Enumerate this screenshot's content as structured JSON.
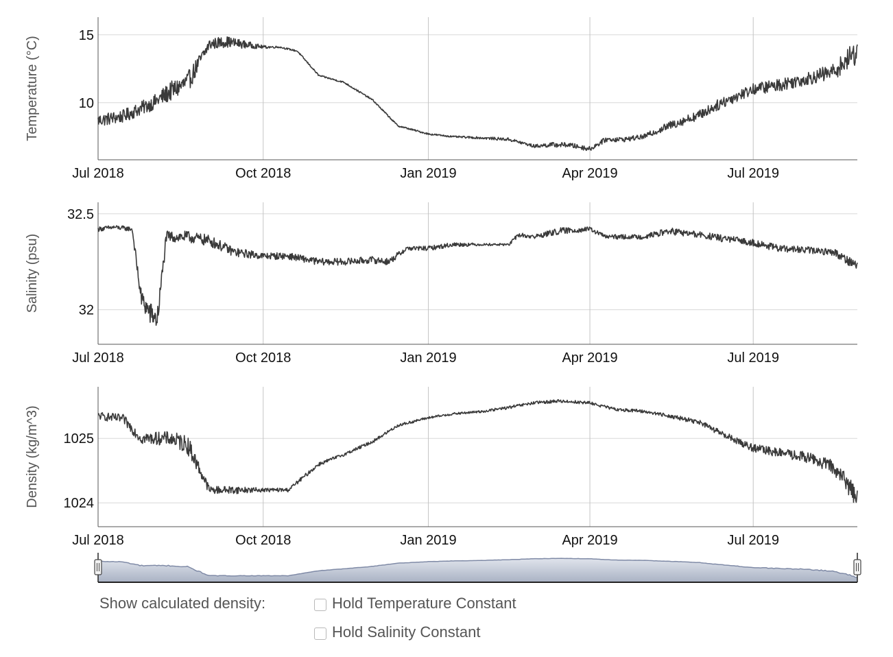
{
  "chart_data": [
    {
      "type": "line",
      "ylabel": "Temperature (°C)",
      "xlim": [
        "2018-07-01",
        "2019-08-28"
      ],
      "ylim": [
        5.8,
        16.3
      ],
      "yticks": [
        10,
        15
      ],
      "xticks": [
        {
          "date": "2018-07-01",
          "label": "Jul 2018"
        },
        {
          "date": "2018-10-01",
          "label": "Oct 2018"
        },
        {
          "date": "2019-01-01",
          "label": "Jan 2019"
        },
        {
          "date": "2019-04-01",
          "label": "Apr 2019"
        },
        {
          "date": "2019-07-01",
          "label": "Jul 2019"
        }
      ],
      "grid": true,
      "series": [
        {
          "x": [
            "2018-07-01",
            "2018-07-15",
            "2018-08-01",
            "2018-08-10",
            "2018-08-20",
            "2018-09-01",
            "2018-09-10",
            "2018-09-20",
            "2018-10-01",
            "2018-10-10",
            "2018-10-20",
            "2018-11-01",
            "2018-11-15",
            "2018-12-01",
            "2018-12-15",
            "2019-01-01",
            "2019-01-15",
            "2019-02-01",
            "2019-02-15",
            "2019-03-01",
            "2019-03-10",
            "2019-03-20",
            "2019-04-01",
            "2019-04-10",
            "2019-04-20",
            "2019-05-01",
            "2019-05-15",
            "2019-06-01",
            "2019-06-15",
            "2019-07-01",
            "2019-07-15",
            "2019-08-01",
            "2019-08-15",
            "2019-08-28"
          ],
          "y": [
            8.7,
            9.0,
            10.0,
            10.8,
            11.5,
            14.3,
            14.5,
            14.3,
            14.1,
            14.1,
            13.8,
            12.0,
            11.5,
            10.2,
            8.3,
            7.7,
            7.5,
            7.4,
            7.3,
            6.8,
            6.9,
            6.9,
            6.6,
            7.3,
            7.3,
            7.5,
            8.3,
            9.1,
            10.1,
            11.0,
            11.3,
            11.8,
            12.3,
            13.8
          ],
          "noise": [
            0.8,
            0.8,
            0.9,
            1.2,
            1.3,
            0.7,
            0.7,
            0.5,
            0.2,
            0.1,
            0.1,
            0.1,
            0.1,
            0.1,
            0.1,
            0.1,
            0.1,
            0.15,
            0.2,
            0.2,
            0.3,
            0.3,
            0.3,
            0.3,
            0.3,
            0.3,
            0.5,
            0.6,
            0.7,
            0.7,
            0.8,
            0.8,
            1.0,
            1.6
          ]
        }
      ]
    },
    {
      "type": "line",
      "ylabel": "Salinity (psu)",
      "xlim": [
        "2018-07-01",
        "2019-08-28"
      ],
      "ylim": [
        31.82,
        32.56
      ],
      "yticks": [
        32,
        32.5
      ],
      "xticks": [
        {
          "date": "2018-07-01",
          "label": "Jul 2018"
        },
        {
          "date": "2018-10-01",
          "label": "Oct 2018"
        },
        {
          "date": "2019-01-01",
          "label": "Jan 2019"
        },
        {
          "date": "2019-04-01",
          "label": "Apr 2019"
        },
        {
          "date": "2019-07-01",
          "label": "Jul 2019"
        }
      ],
      "grid": true,
      "series": [
        {
          "x": [
            "2018-07-01",
            "2018-07-10",
            "2018-07-20",
            "2018-07-25",
            "2018-07-30",
            "2018-08-03",
            "2018-08-08",
            "2018-08-20",
            "2018-09-01",
            "2018-09-15",
            "2018-10-01",
            "2018-10-15",
            "2018-11-01",
            "2018-11-15",
            "2018-12-01",
            "2018-12-10",
            "2018-12-20",
            "2019-01-01",
            "2019-01-15",
            "2019-02-01",
            "2019-02-15",
            "2019-02-20",
            "2019-03-01",
            "2019-03-15",
            "2019-04-01",
            "2019-04-10",
            "2019-05-01",
            "2019-05-15",
            "2019-06-01",
            "2019-06-15",
            "2019-07-01",
            "2019-07-15",
            "2019-08-01",
            "2019-08-15",
            "2019-08-28"
          ],
          "y": [
            32.42,
            32.43,
            32.42,
            32.06,
            31.98,
            31.95,
            32.38,
            32.38,
            32.36,
            32.3,
            32.28,
            32.28,
            32.25,
            32.25,
            32.26,
            32.25,
            32.32,
            32.32,
            32.34,
            32.34,
            32.34,
            32.39,
            32.38,
            32.41,
            32.42,
            32.38,
            32.38,
            32.41,
            32.39,
            32.37,
            32.35,
            32.32,
            32.31,
            32.3,
            32.23
          ],
          "noise": [
            0.02,
            0.02,
            0.02,
            0.08,
            0.1,
            0.1,
            0.05,
            0.05,
            0.05,
            0.04,
            0.03,
            0.03,
            0.03,
            0.03,
            0.03,
            0.03,
            0.02,
            0.02,
            0.02,
            0.01,
            0.01,
            0.02,
            0.02,
            0.03,
            0.02,
            0.02,
            0.02,
            0.03,
            0.03,
            0.03,
            0.03,
            0.03,
            0.03,
            0.03,
            0.05
          ]
        }
      ]
    },
    {
      "type": "line",
      "ylabel": "Density (kg/m^3)",
      "xlim": [
        "2018-07-01",
        "2019-08-28"
      ],
      "ylim": [
        1023.63,
        1025.8
      ],
      "yticks": [
        1024,
        1025
      ],
      "xticks": [
        {
          "date": "2018-07-01",
          "label": "Jul 2018"
        },
        {
          "date": "2018-10-01",
          "label": "Oct 2018"
        },
        {
          "date": "2019-01-01",
          "label": "Jan 2019"
        },
        {
          "date": "2019-04-01",
          "label": "Apr 2019"
        },
        {
          "date": "2019-07-01",
          "label": "Jul 2019"
        }
      ],
      "grid": true,
      "series": [
        {
          "x": [
            "2018-07-01",
            "2018-07-15",
            "2018-07-25",
            "2018-08-10",
            "2018-08-20",
            "2018-09-01",
            "2018-09-15",
            "2018-10-01",
            "2018-10-15",
            "2018-11-01",
            "2018-11-15",
            "2018-12-01",
            "2018-12-15",
            "2019-01-01",
            "2019-01-15",
            "2019-02-01",
            "2019-02-15",
            "2019-03-01",
            "2019-03-15",
            "2019-04-01",
            "2019-04-15",
            "2019-05-01",
            "2019-05-15",
            "2019-06-01",
            "2019-06-15",
            "2019-07-01",
            "2019-07-15",
            "2019-08-01",
            "2019-08-15",
            "2019-08-28"
          ],
          "y": [
            1025.35,
            1025.3,
            1025.0,
            1025.0,
            1024.9,
            1024.2,
            1024.2,
            1024.2,
            1024.2,
            1024.6,
            1024.75,
            1024.95,
            1025.2,
            1025.32,
            1025.38,
            1025.42,
            1025.48,
            1025.55,
            1025.58,
            1025.55,
            1025.45,
            1025.42,
            1025.35,
            1025.25,
            1025.05,
            1024.85,
            1024.78,
            1024.7,
            1024.55,
            1024.1
          ],
          "noise": [
            0.1,
            0.12,
            0.15,
            0.18,
            0.25,
            0.1,
            0.1,
            0.05,
            0.05,
            0.05,
            0.04,
            0.04,
            0.04,
            0.03,
            0.03,
            0.03,
            0.04,
            0.04,
            0.04,
            0.04,
            0.04,
            0.04,
            0.05,
            0.06,
            0.08,
            0.1,
            0.12,
            0.14,
            0.18,
            0.3
          ]
        }
      ]
    }
  ],
  "navigator": {
    "fill_top": "#e0e4ec",
    "fill_bottom": "#a9b2c4",
    "stroke": "#7f8aa6"
  },
  "controls": {
    "label": "Show calculated density:",
    "options": [
      {
        "label": "Hold Temperature Constant",
        "checked": false
      },
      {
        "label": "Hold Salinity Constant",
        "checked": false
      }
    ]
  },
  "colors": {
    "line": "#3a3a3a",
    "grid": "#d8d8d8",
    "axis": "#555555"
  }
}
